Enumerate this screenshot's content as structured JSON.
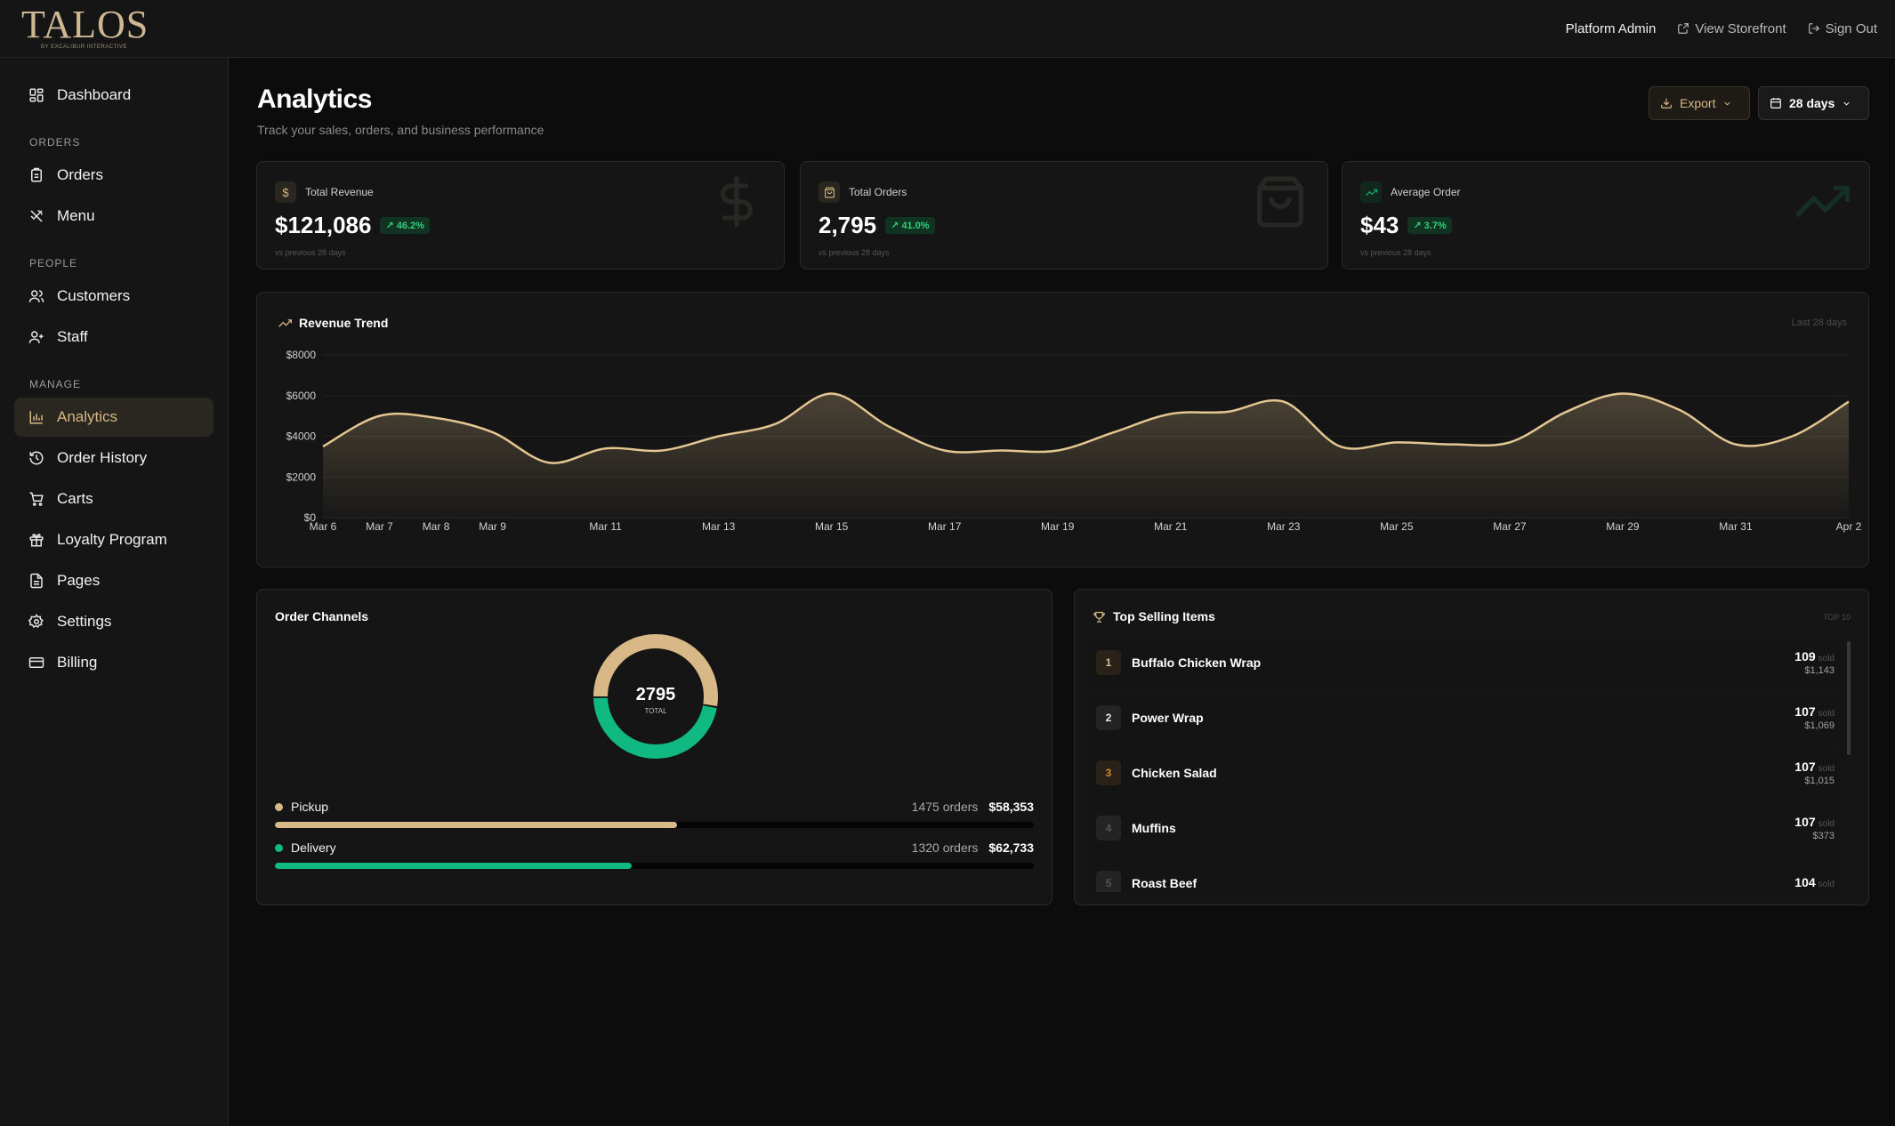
{
  "brand": {
    "name": "TALOS",
    "tagline": "BY EXCALIBUR INTERACTIVE"
  },
  "topbar": {
    "user": "Platform Admin",
    "storefront": "View Storefront",
    "signout": "Sign Out"
  },
  "sidebar": {
    "dashboard": "Dashboard",
    "sections": {
      "orders": "ORDERS",
      "people": "PEOPLE",
      "manage": "MANAGE"
    },
    "orders": "Orders",
    "menu": "Menu",
    "customers": "Customers",
    "staff": "Staff",
    "analytics": "Analytics",
    "order_history": "Order History",
    "carts": "Carts",
    "loyalty": "Loyalty Program",
    "pages": "Pages",
    "settings": "Settings",
    "billing": "Billing"
  },
  "header": {
    "title": "Analytics",
    "subtitle": "Track your sales, orders, and business performance",
    "export": "Export",
    "range": "28 days"
  },
  "stats": [
    {
      "label": "Total Revenue",
      "value": "$121,086",
      "change": "46.2%",
      "note": "vs previous 28 days",
      "icon": "dollar-icon"
    },
    {
      "label": "Total Orders",
      "value": "2,795",
      "change": "41.0%",
      "note": "vs previous 28 days",
      "icon": "shopping-bag-icon"
    },
    {
      "label": "Average Order",
      "value": "$43",
      "change": "3.7%",
      "note": "vs previous 28 days",
      "icon": "trending-up-icon"
    }
  ],
  "colors": {
    "accent": "#d7b886",
    "green": "#10b981",
    "bg": "#0c0c0c",
    "card": "#151515"
  },
  "trend": {
    "title": "Revenue Trend",
    "meta": "Last 28 days"
  },
  "chart_data": {
    "type": "area",
    "title": "Revenue Trend",
    "xlabel": "",
    "ylabel": "",
    "ylim": [
      0,
      8000
    ],
    "yticks": [
      "$8000",
      "$6000",
      "$4000",
      "$2000",
      "$0"
    ],
    "xticks": [
      "Mar 6",
      "Mar 7",
      "Mar 8",
      "Mar 9",
      "Mar 11",
      "Mar 13",
      "Mar 15",
      "Mar 17",
      "Mar 19",
      "Mar 21",
      "Mar 23",
      "Mar 25",
      "Mar 27",
      "Mar 29",
      "Mar 31",
      "Apr 2"
    ],
    "x": [
      "Mar 6",
      "Mar 7",
      "Mar 8",
      "Mar 9",
      "Mar 10",
      "Mar 11",
      "Mar 12",
      "Mar 13",
      "Mar 14",
      "Mar 15",
      "Mar 16",
      "Mar 17",
      "Mar 18",
      "Mar 19",
      "Mar 20",
      "Mar 21",
      "Mar 22",
      "Mar 23",
      "Mar 24",
      "Mar 25",
      "Mar 26",
      "Mar 27",
      "Mar 28",
      "Mar 29",
      "Mar 30",
      "Mar 31",
      "Apr 1",
      "Apr 2"
    ],
    "values": [
      3500,
      5000,
      4900,
      4200,
      2700,
      3400,
      3300,
      4000,
      4600,
      6100,
      4500,
      3300,
      3300,
      3300,
      4200,
      5100,
      5200,
      5700,
      3500,
      3700,
      3600,
      3700,
      5200,
      6100,
      5300,
      3600,
      4000,
      5700
    ],
    "grid": true
  },
  "channels": {
    "title": "Order Channels",
    "total": "2795",
    "total_label": "TOTAL",
    "items": [
      {
        "name": "Pickup",
        "orders": "1475 orders",
        "amount": "$58,353",
        "fraction": 0.53,
        "color": "#d7b886"
      },
      {
        "name": "Delivery",
        "orders": "1320 orders",
        "amount": "$62,733",
        "fraction": 0.47,
        "color": "#10b981"
      }
    ]
  },
  "top_items": {
    "title": "Top Selling Items",
    "meta": "TOP 10",
    "sold_label": "sold",
    "items": [
      {
        "rank": "1",
        "name": "Buffalo Chicken Wrap",
        "sold": "109",
        "revenue": "$1,143"
      },
      {
        "rank": "2",
        "name": "Power Wrap",
        "sold": "107",
        "revenue": "$1,069"
      },
      {
        "rank": "3",
        "name": "Chicken Salad",
        "sold": "107",
        "revenue": "$1,015"
      },
      {
        "rank": "4",
        "name": "Muffins",
        "sold": "107",
        "revenue": "$373"
      },
      {
        "rank": "5",
        "name": "Roast Beef",
        "sold": "104",
        "revenue": ""
      }
    ]
  }
}
